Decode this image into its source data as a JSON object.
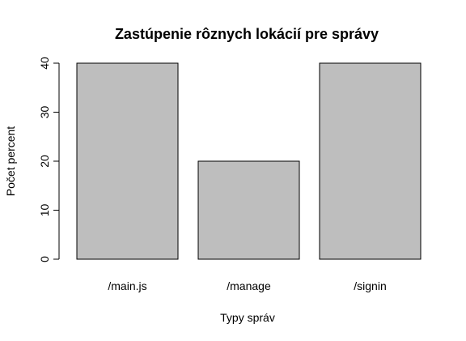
{
  "chart_data": {
    "type": "bar",
    "title": "Zastúpenie rôznych lokácií pre správy",
    "xlabel": "Typy správ",
    "ylabel": "Počet percent",
    "categories": [
      "/main.js",
      "/manage",
      "/signin"
    ],
    "values": [
      40,
      20,
      40
    ],
    "ylim": [
      0,
      40
    ],
    "yticks": [
      0,
      10,
      20,
      30,
      40
    ],
    "grid": false,
    "bar_color": "#bebebe",
    "bar_edge_color": "#000000"
  }
}
